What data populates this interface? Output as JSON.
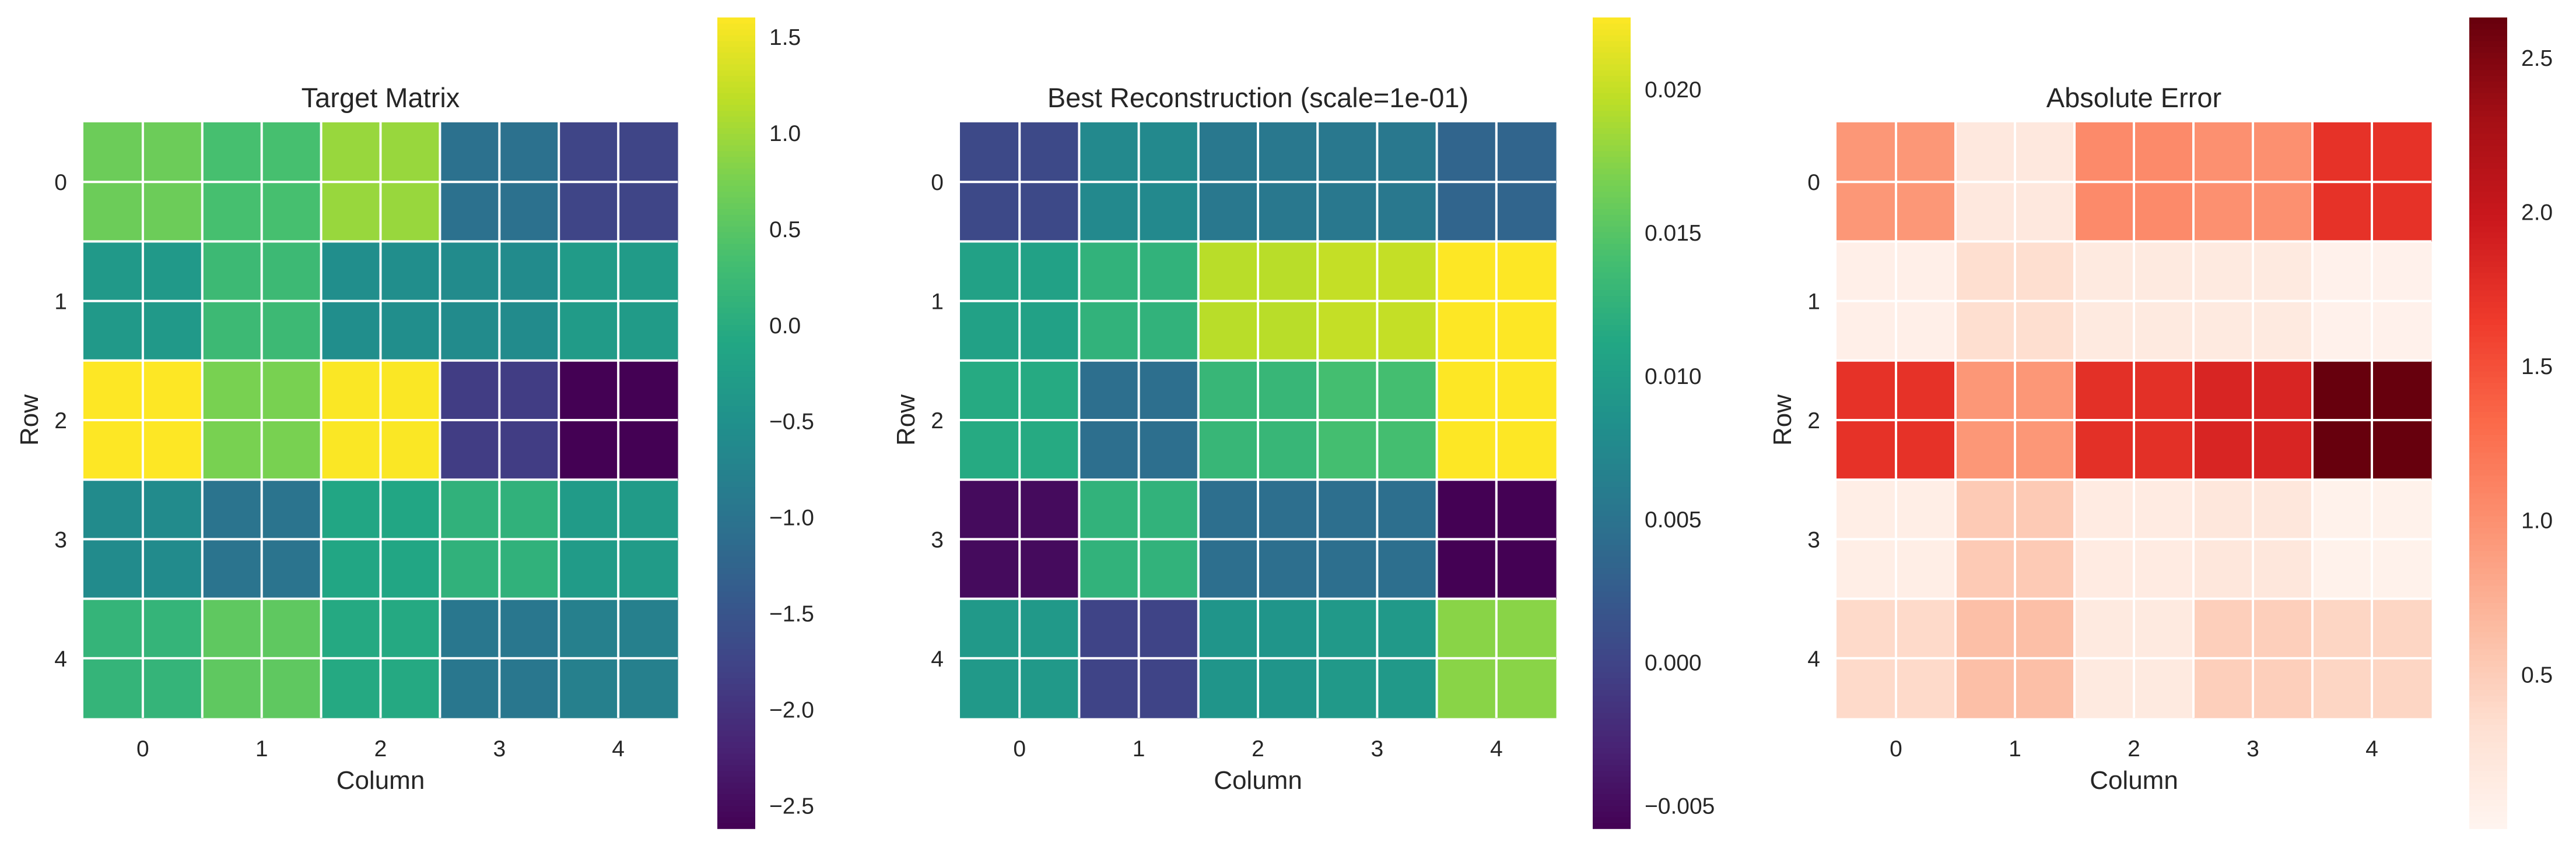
{
  "chart_data": [
    {
      "type": "heatmap",
      "title": "Target Matrix",
      "xlabel": "Column",
      "ylabel": "Row",
      "x_ticks": [
        "0",
        "1",
        "2",
        "3",
        "4"
      ],
      "y_ticks": [
        "0",
        "1",
        "2",
        "3",
        "4"
      ],
      "colormap": "viridis",
      "grid": true,
      "vmin": -2.62,
      "vmax": 1.6,
      "colorbar_ticks": [
        -2.5,
        -2.0,
        -1.5,
        -1.0,
        -0.5,
        0.0,
        0.5,
        1.0,
        1.5
      ],
      "colorbar_labels": [
        "−2.5",
        "−2.0",
        "−1.5",
        "−1.0",
        "−0.5",
        "0.0",
        "0.5",
        "1.0",
        "1.5"
      ],
      "values": [
        [
          0.65,
          0.35,
          0.95,
          -1.05,
          -1.75
        ],
        [
          -0.35,
          0.25,
          -0.55,
          -0.6,
          -0.3
        ],
        [
          1.6,
          0.75,
          1.58,
          -1.85,
          -2.62
        ],
        [
          -0.6,
          -1.0,
          -0.1,
          0.1,
          -0.3
        ],
        [
          0.15,
          0.55,
          -0.05,
          -0.95,
          -0.8
        ]
      ]
    },
    {
      "type": "heatmap",
      "title": "Best Reconstruction (scale=1e-01)",
      "xlabel": "Column",
      "ylabel": "Row",
      "x_ticks": [
        "0",
        "1",
        "2",
        "3",
        "4"
      ],
      "y_ticks": [
        "0",
        "1",
        "2",
        "3",
        "4"
      ],
      "colormap": "viridis",
      "grid": true,
      "vmin": -0.0058,
      "vmax": 0.0225,
      "colorbar_ticks": [
        -0.005,
        0.0,
        0.005,
        0.01,
        0.015,
        0.02
      ],
      "colorbar_labels": [
        "−0.005",
        "0.000",
        "0.005",
        "0.010",
        "0.015",
        "0.020"
      ],
      "values": [
        [
          0.0005,
          0.0075,
          0.0055,
          0.0055,
          0.0035
        ],
        [
          0.0105,
          0.0125,
          0.0195,
          0.02,
          0.0225
        ],
        [
          0.0115,
          0.0045,
          0.013,
          0.014,
          0.0225
        ],
        [
          -0.005,
          0.0125,
          0.0045,
          0.0045,
          -0.0058
        ],
        [
          0.0095,
          0.0,
          0.009,
          0.0095,
          0.0175
        ]
      ]
    },
    {
      "type": "heatmap",
      "title": "Absolute Error",
      "xlabel": "Column",
      "ylabel": "Row",
      "x_ticks": [
        "0",
        "1",
        "2",
        "3",
        "4"
      ],
      "y_ticks": [
        "0",
        "1",
        "2",
        "3",
        "4"
      ],
      "colormap": "Reds",
      "grid": true,
      "vmin": 0.0,
      "vmax": 2.63,
      "colorbar_ticks": [
        0.5,
        1.0,
        1.5,
        2.0,
        2.5
      ],
      "colorbar_labels": [
        "0.5",
        "1.0",
        "1.5",
        "2.0",
        "2.5"
      ],
      "values": [
        [
          0.95,
          0.2,
          1.05,
          1.0,
          1.73
        ],
        [
          0.09,
          0.34,
          0.18,
          0.18,
          0.06
        ],
        [
          1.73,
          0.95,
          1.75,
          1.85,
          2.63
        ],
        [
          0.11,
          0.52,
          0.15,
          0.22,
          0.05
        ],
        [
          0.38,
          0.62,
          0.17,
          0.48,
          0.42
        ]
      ]
    }
  ]
}
